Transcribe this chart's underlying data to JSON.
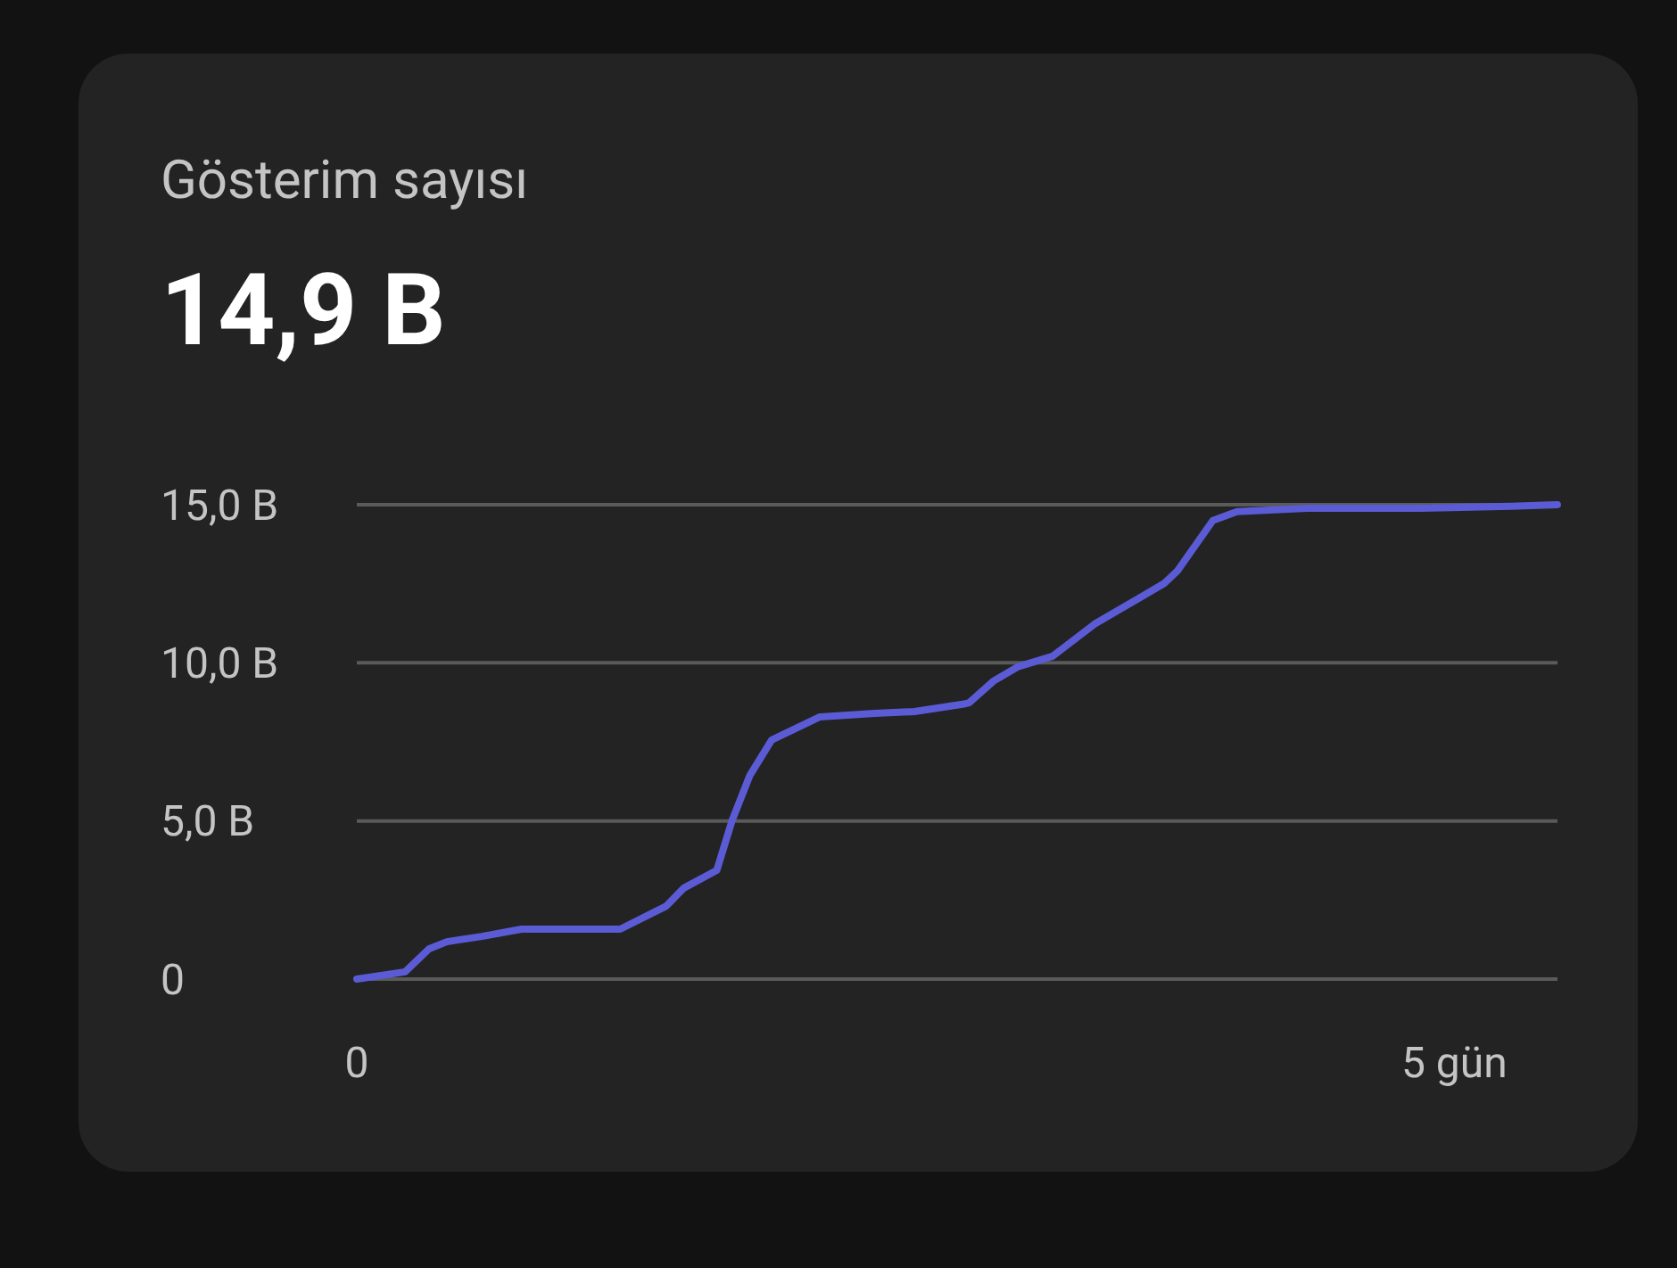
{
  "chart_data": {
    "type": "line",
    "title": "Gösterim sayısı",
    "subtitle": "14,9 B",
    "x": [
      0,
      0.22,
      0.33,
      0.41,
      0.57,
      0.75,
      1.2,
      1.41,
      1.49,
      1.64,
      1.71,
      1.79,
      1.89,
      2.11,
      2.36,
      2.54,
      2.76,
      2.79,
      2.9,
      3.01,
      3.17,
      3.36,
      3.68,
      3.74,
      3.9,
      4.01,
      4.33,
      4.85,
      5.26,
      5.47
    ],
    "series": [
      {
        "color": "#5b5bd6",
        "values": [
          0,
          0.23,
          0.96,
          1.18,
          1.35,
          1.58,
          1.58,
          2.31,
          2.88,
          3.44,
          5.02,
          6.43,
          7.56,
          8.29,
          8.4,
          8.46,
          8.69,
          8.74,
          9.42,
          9.87,
          10.21,
          11.22,
          12.52,
          12.92,
          14.5,
          14.78,
          14.89,
          14.89,
          14.95,
          15
        ]
      }
    ],
    "xlim": [
      0,
      5.47
    ],
    "xticks": [
      0,
      {
        "value": 5,
        "label": "5 gün"
      }
    ],
    "ylim": [
      0,
      15
    ],
    "yticks": [
      {
        "value": 0,
        "label": "0"
      },
      {
        "value": 5,
        "label": "5,0 B"
      },
      {
        "value": 10,
        "label": "10,0 B"
      },
      {
        "value": 15,
        "label": "15,0 B"
      }
    ],
    "grid": "y",
    "marker": "none",
    "line_style": "solid"
  }
}
